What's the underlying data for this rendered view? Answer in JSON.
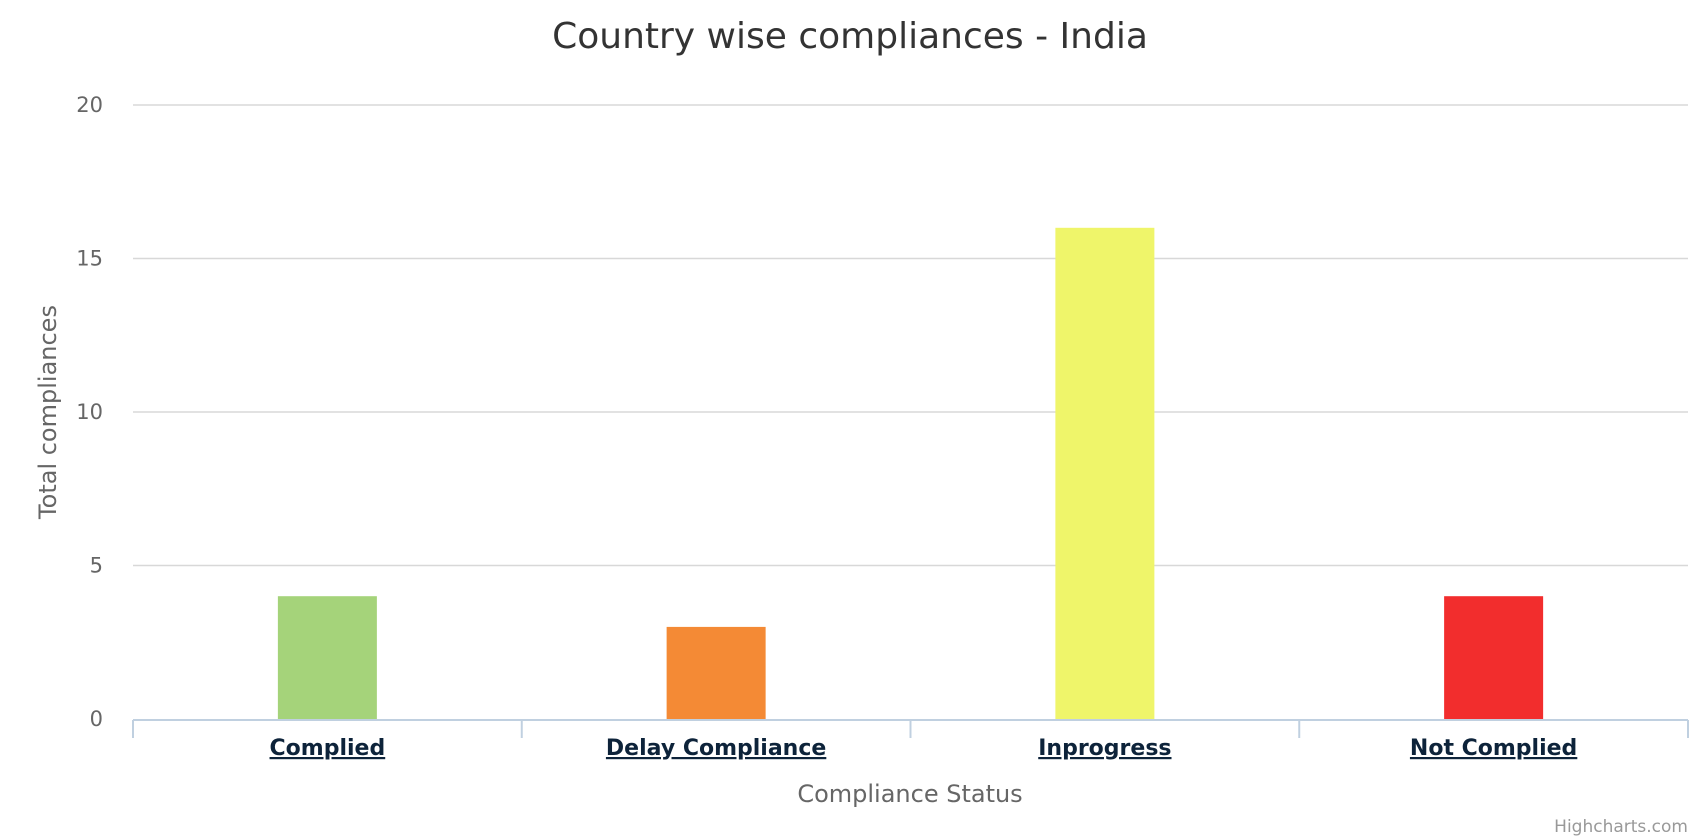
{
  "chart_data": {
    "type": "bar",
    "title": "Country wise compliances - India",
    "xlabel": "Compliance Status",
    "ylabel": "Total compliances",
    "categories": [
      "Complied",
      "Delay Compliance",
      "Inprogress",
      "Not Complied"
    ],
    "values": [
      4,
      3,
      16,
      4
    ],
    "colors": [
      "#a5d37a",
      "#f48a35",
      "#eff56a",
      "#f22d2d"
    ],
    "ylim": [
      0,
      20
    ],
    "yticks": [
      0,
      5,
      10,
      15,
      20
    ],
    "ytick_labels": [
      "0",
      "5",
      "10",
      "15",
      "20"
    ],
    "grid": true,
    "legend": "none"
  },
  "credits": "Highcharts.com"
}
